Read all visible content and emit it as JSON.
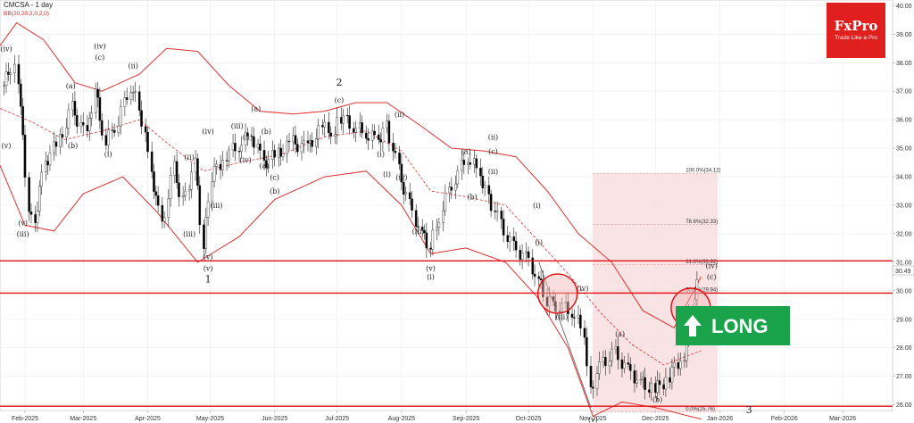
{
  "header": {
    "symbol_label": "CMCSA - 1 day",
    "indicator_label": "BB(20,20,2,0,2,0)"
  },
  "logo": {
    "brand": "FxPro",
    "tagline": "Trade Like a Pro",
    "color": "#e01f1f"
  },
  "long_badge": {
    "label": "LONG",
    "color": "#1aa34a"
  },
  "price_tag": "30.49",
  "colors": {
    "candle_up": "#ffffff",
    "candle_down": "#000000",
    "bollinger": "#e03030",
    "support_resistance": "#e01010",
    "fib_zone": "#f7d9db"
  },
  "chart_data": {
    "type": "candlestick",
    "title": "CMCSA - 1 day",
    "ylim": [
      25.8,
      40.2
    ],
    "y_ticks": [
      "26.00",
      "27.00",
      "28.00",
      "29.00",
      "30.00",
      "31.00",
      "32.00",
      "33.00",
      "34.00",
      "35.00",
      "36.00",
      "37.00",
      "38.00",
      "39.00",
      "40.00"
    ],
    "x_ticks": [
      "Feb-2025",
      "Mar-2025",
      "Apr-2025",
      "May-2025",
      "Jun-2025",
      "Jul-2025",
      "Aug-2025",
      "Sep-2025",
      "Oct-2025",
      "Nov-2025",
      "Dec-2025",
      "Jan-2026",
      "Feb-2026",
      "Mar-2026"
    ],
    "x_range": [
      "2025-01-20",
      "2026-03-25"
    ],
    "close_series": [
      [
        "2025-01-22",
        37.2
      ],
      [
        "2025-01-27",
        38.1
      ],
      [
        "2025-01-29",
        37.5
      ],
      [
        "2025-02-03",
        33.0
      ],
      [
        "2025-02-06",
        32.5
      ],
      [
        "2025-02-11",
        34.5
      ],
      [
        "2025-02-18",
        35.3
      ],
      [
        "2025-02-24",
        36.4
      ],
      [
        "2025-03-03",
        35.4
      ],
      [
        "2025-03-07",
        37.0
      ],
      [
        "2025-03-12",
        35.2
      ],
      [
        "2025-03-18",
        36.0
      ],
      [
        "2025-03-24",
        37.2
      ],
      [
        "2025-03-28",
        36.5
      ],
      [
        "2025-04-03",
        34.2
      ],
      [
        "2025-04-08",
        32.3
      ],
      [
        "2025-04-14",
        34.3
      ],
      [
        "2025-04-18",
        33.1
      ],
      [
        "2025-04-24",
        34.5
      ],
      [
        "2025-04-28",
        31.5
      ],
      [
        "2025-05-02",
        34.0
      ],
      [
        "2025-05-09",
        34.8
      ],
      [
        "2025-05-15",
        35.1
      ],
      [
        "2025-05-21",
        35.5
      ],
      [
        "2025-05-27",
        34.5
      ],
      [
        "2025-06-03",
        34.8
      ],
      [
        "2025-06-10",
        35.2
      ],
      [
        "2025-06-17",
        35.0
      ],
      [
        "2025-06-24",
        35.7
      ],
      [
        "2025-06-30",
        35.6
      ],
      [
        "2025-07-03",
        36.1
      ],
      [
        "2025-07-09",
        35.8
      ],
      [
        "2025-07-15",
        35.5
      ],
      [
        "2025-07-21",
        35.3
      ],
      [
        "2025-07-25",
        35.8
      ],
      [
        "2025-07-31",
        34.2
      ],
      [
        "2025-08-05",
        33.0
      ],
      [
        "2025-08-11",
        32.0
      ],
      [
        "2025-08-15",
        31.5
      ],
      [
        "2025-08-21",
        33.0
      ],
      [
        "2025-08-27",
        34.0
      ],
      [
        "2025-09-02",
        34.7
      ],
      [
        "2025-09-08",
        34.1
      ],
      [
        "2025-09-12",
        33.3
      ],
      [
        "2025-09-18",
        32.3
      ],
      [
        "2025-09-24",
        31.5
      ],
      [
        "2025-09-30",
        31.2
      ],
      [
        "2025-10-06",
        30.4
      ],
      [
        "2025-10-10",
        29.6
      ],
      [
        "2025-10-16",
        29.5
      ],
      [
        "2025-10-22",
        29.3
      ],
      [
        "2025-10-28",
        28.5
      ],
      [
        "2025-10-31",
        26.6
      ],
      [
        "2025-11-06",
        27.5
      ],
      [
        "2025-11-12",
        27.8
      ],
      [
        "2025-11-18",
        27.2
      ],
      [
        "2025-11-24",
        26.8
      ],
      [
        "2025-12-01",
        26.5
      ],
      [
        "2025-12-08",
        27.0
      ],
      [
        "2025-12-15",
        27.8
      ],
      [
        "2025-12-19",
        29.5
      ],
      [
        "2025-12-23",
        30.5
      ]
    ],
    "horizontal_levels": [
      31.05,
      29.92,
      25.95
    ],
    "bollinger_upper": [
      [
        "2025-01-20",
        38.6
      ],
      [
        "2025-01-28",
        39.4
      ],
      [
        "2025-02-10",
        38.8
      ],
      [
        "2025-02-25",
        37.3
      ],
      [
        "2025-03-10",
        37.0
      ],
      [
        "2025-03-28",
        37.6
      ],
      [
        "2025-04-10",
        38.5
      ],
      [
        "2025-04-25",
        38.4
      ],
      [
        "2025-05-10",
        37.2
      ],
      [
        "2025-05-25",
        36.3
      ],
      [
        "2025-06-10",
        36.2
      ],
      [
        "2025-06-25",
        36.3
      ],
      [
        "2025-07-10",
        36.6
      ],
      [
        "2025-07-25",
        36.6
      ],
      [
        "2025-08-10",
        35.8
      ],
      [
        "2025-08-25",
        35.0
      ],
      [
        "2025-09-10",
        34.9
      ],
      [
        "2025-09-25",
        34.7
      ],
      [
        "2025-10-10",
        33.5
      ],
      [
        "2025-10-25",
        32.0
      ],
      [
        "2025-11-10",
        31.0
      ],
      [
        "2025-11-25",
        29.3
      ],
      [
        "2025-12-10",
        28.7
      ],
      [
        "2025-12-23",
        30.5
      ]
    ],
    "bollinger_middle": [
      [
        "2025-01-20",
        36.4
      ],
      [
        "2025-02-05",
        35.9
      ],
      [
        "2025-02-20",
        35.3
      ],
      [
        "2025-03-10",
        35.6
      ],
      [
        "2025-03-28",
        36.0
      ],
      [
        "2025-04-10",
        35.2
      ],
      [
        "2025-04-28",
        34.2
      ],
      [
        "2025-05-15",
        34.5
      ],
      [
        "2025-06-05",
        34.8
      ],
      [
        "2025-06-25",
        35.4
      ],
      [
        "2025-07-15",
        35.6
      ],
      [
        "2025-08-01",
        34.9
      ],
      [
        "2025-08-15",
        33.5
      ],
      [
        "2025-09-01",
        33.3
      ],
      [
        "2025-09-20",
        33.0
      ],
      [
        "2025-10-05",
        31.8
      ],
      [
        "2025-10-20",
        30.6
      ],
      [
        "2025-11-05",
        29.2
      ],
      [
        "2025-11-20",
        28.1
      ],
      [
        "2025-12-05",
        27.4
      ],
      [
        "2025-12-23",
        27.9
      ]
    ],
    "bollinger_lower": [
      [
        "2025-01-20",
        34.4
      ],
      [
        "2025-02-01",
        32.3
      ],
      [
        "2025-02-15",
        32.1
      ],
      [
        "2025-03-01",
        33.4
      ],
      [
        "2025-03-20",
        34.0
      ],
      [
        "2025-04-05",
        32.8
      ],
      [
        "2025-04-25",
        31.0
      ],
      [
        "2025-05-15",
        31.9
      ],
      [
        "2025-06-01",
        33.2
      ],
      [
        "2025-06-25",
        34.0
      ],
      [
        "2025-07-15",
        34.2
      ],
      [
        "2025-08-01",
        33.0
      ],
      [
        "2025-08-15",
        31.3
      ],
      [
        "2025-09-01",
        31.5
      ],
      [
        "2025-09-20",
        31.0
      ],
      [
        "2025-10-05",
        29.8
      ],
      [
        "2025-10-20",
        28.0
      ],
      [
        "2025-11-01",
        25.6
      ],
      [
        "2025-11-15",
        26.1
      ],
      [
        "2025-12-01",
        25.9
      ],
      [
        "2025-12-23",
        25.5
      ]
    ],
    "fib_levels": [
      {
        "label": "100.0%(34.12)",
        "value": 34.12
      },
      {
        "label": "78.6%(32.33)",
        "value": 32.33
      },
      {
        "label": "61.8%(30.92)",
        "value": 30.92
      },
      {
        "label": "50.0%(29.94)",
        "value": 29.94
      },
      {
        "label": "0.0%(25.76)",
        "value": 25.76
      }
    ],
    "fib_zone": {
      "x_start": "2025-11-01",
      "x_end": "2025-12-31",
      "y_top": 34.12,
      "y_bottom": 25.76
    },
    "trendline": [
      [
        "2025-10-06",
        31.0
      ],
      [
        "2025-10-31",
        25.9
      ]
    ],
    "circles": [
      [
        "2025-10-15",
        29.9
      ],
      [
        "2025-12-18",
        29.4
      ]
    ],
    "wave_labels": [
      {
        "t": "(iv)",
        "d": "2025-01-23",
        "v": 38.4
      },
      {
        "t": "(v)",
        "d": "2025-01-23",
        "v": 35.0
      },
      {
        "t": "(v)",
        "d": "2025-01-31",
        "v": 32.3
      },
      {
        "t": "(iii)",
        "d": "2025-01-31",
        "v": 31.9
      },
      {
        "t": "(a)",
        "d": "2025-02-23",
        "v": 37.1
      },
      {
        "t": "(b)",
        "d": "2025-02-24",
        "v": 35.0
      },
      {
        "t": "(iv)",
        "d": "2025-03-09",
        "v": 38.5
      },
      {
        "t": "(c)",
        "d": "2025-03-09",
        "v": 38.1
      },
      {
        "t": "(i)",
        "d": "2025-03-13",
        "v": 34.7
      },
      {
        "t": "(ii)",
        "d": "2025-03-25",
        "v": 37.8
      },
      {
        "t": "(iii)",
        "d": "2025-04-21",
        "v": 31.9
      },
      {
        "t": "(iv)",
        "d": "2025-04-30",
        "v": 35.5
      },
      {
        "t": "(ii)",
        "d": "2025-04-21",
        "v": 34.6
      },
      {
        "t": "(v)",
        "d": "2025-04-30",
        "v": 31.1
      },
      {
        "t": "(v)",
        "d": "2025-04-30",
        "v": 30.7
      },
      {
        "t": "1",
        "d": "2025-04-30",
        "v": 30.3
      },
      {
        "t": "(iii)",
        "d": "2025-05-04",
        "v": 32.9
      },
      {
        "t": "(iii)",
        "d": "2025-05-14",
        "v": 35.7
      },
      {
        "t": "(ii)",
        "d": "2025-05-19",
        "v": 35.3
      },
      {
        "t": "(iv)",
        "d": "2025-05-18",
        "v": 34.5
      },
      {
        "t": "(a)",
        "d": "2025-05-23",
        "v": 36.3
      },
      {
        "t": "(b)",
        "d": "2025-05-28",
        "v": 35.5
      },
      {
        "t": "(a)",
        "d": "2025-05-27",
        "v": 34.3
      },
      {
        "t": "(c)",
        "d": "2025-06-01",
        "v": 33.9
      },
      {
        "t": "(b)",
        "d": "2025-06-01",
        "v": 33.4
      },
      {
        "t": "2",
        "d": "2025-07-02",
        "v": 37.2
      },
      {
        "t": "(c)",
        "d": "2025-07-02",
        "v": 36.6
      },
      {
        "t": "(ii)",
        "d": "2025-07-31",
        "v": 36.1
      },
      {
        "t": "(i)",
        "d": "2025-07-22",
        "v": 34.7
      },
      {
        "t": "(i)",
        "d": "2025-07-25",
        "v": 34.0
      },
      {
        "t": "(iv)",
        "d": "2025-08-01",
        "v": 33.9
      },
      {
        "t": "(iii)",
        "d": "2025-08-09",
        "v": 32.0
      },
      {
        "t": "(v)",
        "d": "2025-08-15",
        "v": 30.7
      },
      {
        "t": "(i)",
        "d": "2025-08-15",
        "v": 30.4
      },
      {
        "t": "(a)",
        "d": "2025-09-01",
        "v": 34.8
      },
      {
        "t": "(b)",
        "d": "2025-09-04",
        "v": 33.2
      },
      {
        "t": "(ii)",
        "d": "2025-09-14",
        "v": 35.3
      },
      {
        "t": "(c)",
        "d": "2025-09-14",
        "v": 34.8
      },
      {
        "t": "(ii)",
        "d": "2025-09-14",
        "v": 34.1
      },
      {
        "t": "(i)",
        "d": "2025-10-05",
        "v": 32.9
      },
      {
        "t": "(i)",
        "d": "2025-10-06",
        "v": 31.6
      },
      {
        "t": "(iv)",
        "d": "2025-10-27",
        "v": 30.0
      },
      {
        "t": "(iii)",
        "d": "2025-10-17",
        "v": 29.0
      },
      {
        "t": "(v)",
        "d": "2025-11-01",
        "v": 25.4
      },
      {
        "t": "(i)",
        "d": "2025-11-01",
        "v": 25.0
      },
      {
        "t": "(a)",
        "d": "2025-11-14",
        "v": 28.4
      },
      {
        "t": "(b)",
        "d": "2025-12-02",
        "v": 26.1
      },
      {
        "t": "(iv)",
        "d": "2025-12-28",
        "v": 30.8
      },
      {
        "t": "(c)",
        "d": "2025-12-28",
        "v": 30.4
      },
      {
        "t": "3",
        "d": "2026-01-15",
        "v": 25.7
      }
    ]
  }
}
